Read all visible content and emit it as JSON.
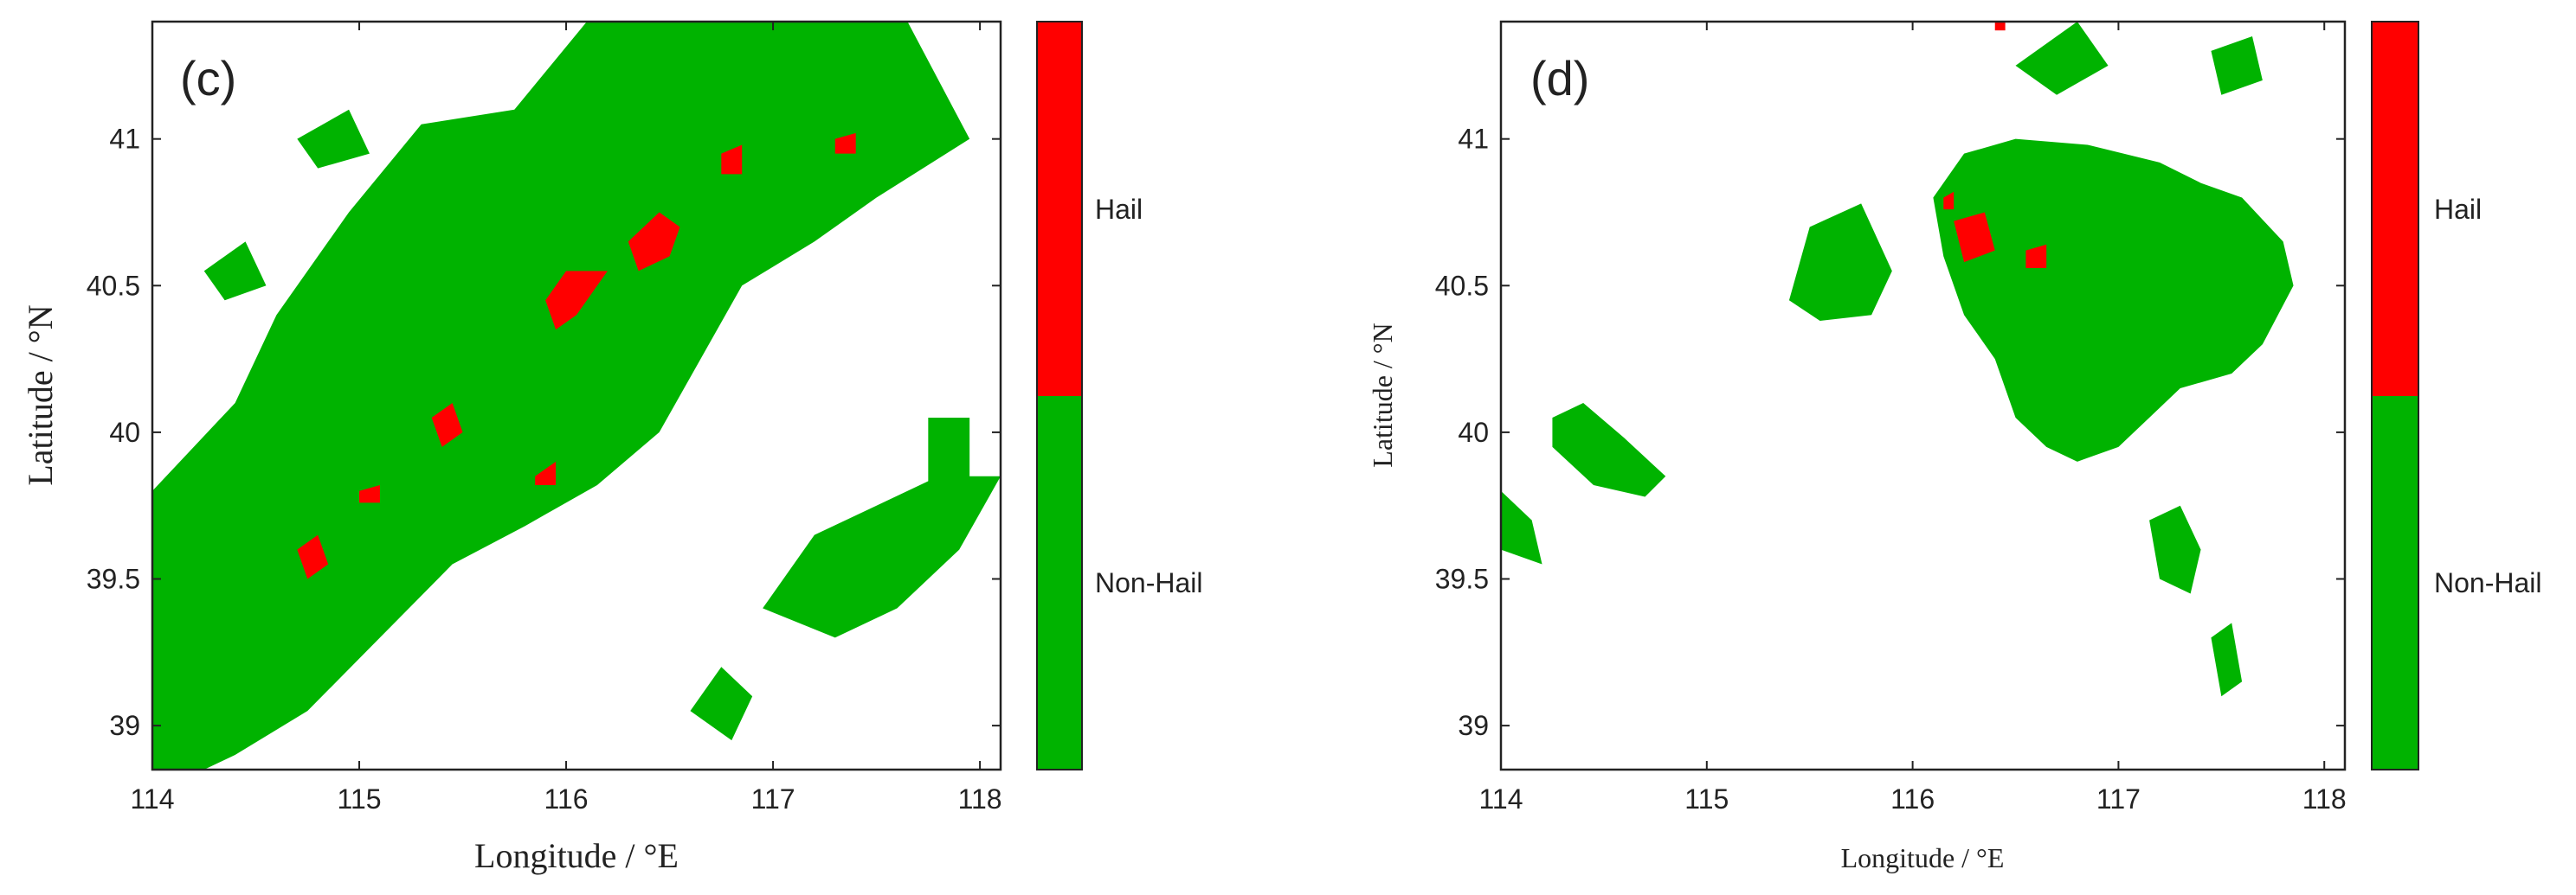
{
  "chart_data": [
    {
      "type": "heatmap",
      "panel_label": "(c)",
      "xlabel": "Longitude / °E",
      "ylabel": "Latitude / °N",
      "xlim": [
        114,
        118.1
      ],
      "ylim": [
        38.85,
        41.4
      ],
      "xticks": [
        114,
        115,
        116,
        117,
        118
      ],
      "yticks": [
        39,
        39.5,
        40,
        40.5,
        41
      ],
      "xtick_labels": [
        "114",
        "115",
        "116",
        "117",
        "118"
      ],
      "ytick_labels": [
        "39",
        "39.5",
        "40",
        "40.5",
        "41"
      ],
      "colorbar": {
        "categories": [
          "Hail",
          "Non-Hail"
        ],
        "colors": {
          "Hail": "#ff0000",
          "Non-Hail": "#00b300"
        }
      },
      "regions": {
        "non_hail": [
          [
            [
              114,
              38.85
            ],
            [
              114,
              39.8
            ],
            [
              114.4,
              40.1
            ],
            [
              114.6,
              40.4
            ],
            [
              114.95,
              40.75
            ],
            [
              115.3,
              41.05
            ],
            [
              115.75,
              41.1
            ],
            [
              116.1,
              41.4
            ],
            [
              117.65,
              41.4
            ],
            [
              117.95,
              41.0
            ],
            [
              117.5,
              40.8
            ],
            [
              117.2,
              40.65
            ],
            [
              116.85,
              40.5
            ],
            [
              116.65,
              40.25
            ],
            [
              116.45,
              40.0
            ],
            [
              116.15,
              39.82
            ],
            [
              115.8,
              39.68
            ],
            [
              115.45,
              39.55
            ],
            [
              115.1,
              39.3
            ],
            [
              114.75,
              39.05
            ],
            [
              114.4,
              38.9
            ],
            [
              114.25,
              38.85
            ]
          ],
          [
            [
              114.25,
              40.55
            ],
            [
              114.45,
              40.65
            ],
            [
              114.55,
              40.5
            ],
            [
              114.35,
              40.45
            ]
          ],
          [
            [
              114.7,
              41.0
            ],
            [
              114.95,
              41.1
            ],
            [
              115.05,
              40.95
            ],
            [
              114.8,
              40.9
            ]
          ],
          [
            [
              116.95,
              39.4
            ],
            [
              117.2,
              39.65
            ],
            [
              117.5,
              39.75
            ],
            [
              117.8,
              39.85
            ],
            [
              118.1,
              39.85
            ],
            [
              117.9,
              39.6
            ],
            [
              117.6,
              39.4
            ],
            [
              117.3,
              39.3
            ]
          ],
          [
            [
              116.6,
              39.05
            ],
            [
              116.75,
              39.2
            ],
            [
              116.9,
              39.1
            ],
            [
              116.8,
              38.95
            ]
          ],
          [
            [
              117.75,
              40.05
            ],
            [
              117.95,
              40.05
            ],
            [
              117.95,
              39.75
            ],
            [
              117.75,
              39.75
            ]
          ]
        ],
        "hail": [
          [
            [
              116.3,
              40.65
            ],
            [
              116.45,
              40.75
            ],
            [
              116.55,
              40.7
            ],
            [
              116.5,
              40.6
            ],
            [
              116.35,
              40.55
            ]
          ],
          [
            [
              115.9,
              40.45
            ],
            [
              116.0,
              40.55
            ],
            [
              116.2,
              40.55
            ],
            [
              116.05,
              40.4
            ],
            [
              115.95,
              40.35
            ]
          ],
          [
            [
              115.35,
              40.05
            ],
            [
              115.45,
              40.1
            ],
            [
              115.5,
              40.0
            ],
            [
              115.4,
              39.95
            ]
          ],
          [
            [
              114.7,
              39.6
            ],
            [
              114.8,
              39.65
            ],
            [
              114.85,
              39.55
            ],
            [
              114.75,
              39.5
            ]
          ],
          [
            [
              116.75,
              40.95
            ],
            [
              116.85,
              40.98
            ],
            [
              116.85,
              40.88
            ],
            [
              116.75,
              40.88
            ]
          ],
          [
            [
              117.3,
              41.0
            ],
            [
              117.4,
              41.02
            ],
            [
              117.4,
              40.95
            ],
            [
              117.3,
              40.95
            ]
          ],
          [
            [
              115.85,
              39.85
            ],
            [
              115.95,
              39.9
            ],
            [
              115.95,
              39.82
            ],
            [
              115.85,
              39.82
            ]
          ],
          [
            [
              115.0,
              39.8
            ],
            [
              115.1,
              39.82
            ],
            [
              115.1,
              39.76
            ],
            [
              115.0,
              39.76
            ]
          ]
        ]
      }
    },
    {
      "type": "heatmap",
      "panel_label": "(d)",
      "xlabel": "Longitude / °E",
      "ylabel": "Latitude / °N",
      "xlim": [
        114,
        118.1
      ],
      "ylim": [
        38.85,
        41.4
      ],
      "xticks": [
        114,
        115,
        116,
        117,
        118
      ],
      "yticks": [
        39,
        39.5,
        40,
        40.5,
        41
      ],
      "xtick_labels": [
        "114",
        "115",
        "116",
        "117",
        "118"
      ],
      "ytick_labels": [
        "39",
        "39.5",
        "40",
        "40.5",
        "41"
      ],
      "colorbar": {
        "categories": [
          "Hail",
          "Non-Hail"
        ],
        "colors": {
          "Hail": "#ff0000",
          "Non-Hail": "#00b300"
        }
      },
      "regions": {
        "non_hail": [
          [
            [
              116.25,
              40.95
            ],
            [
              116.5,
              41.0
            ],
            [
              116.85,
              40.98
            ],
            [
              117.2,
              40.92
            ],
            [
              117.4,
              40.85
            ],
            [
              117.6,
              40.8
            ],
            [
              117.8,
              40.65
            ],
            [
              117.85,
              40.5
            ],
            [
              117.7,
              40.3
            ],
            [
              117.55,
              40.2
            ],
            [
              117.3,
              40.15
            ],
            [
              117.15,
              40.05
            ],
            [
              117.0,
              39.95
            ],
            [
              116.8,
              39.9
            ],
            [
              116.65,
              39.95
            ],
            [
              116.5,
              40.05
            ],
            [
              116.4,
              40.25
            ],
            [
              116.25,
              40.4
            ],
            [
              116.15,
              40.6
            ],
            [
              116.1,
              40.8
            ]
          ],
          [
            [
              115.4,
              40.45
            ],
            [
              115.5,
              40.7
            ],
            [
              115.75,
              40.78
            ],
            [
              115.9,
              40.55
            ],
            [
              115.8,
              40.4
            ],
            [
              115.55,
              40.38
            ]
          ],
          [
            [
              114.25,
              40.05
            ],
            [
              114.4,
              40.1
            ],
            [
              114.6,
              39.98
            ],
            [
              114.8,
              39.85
            ],
            [
              114.7,
              39.78
            ],
            [
              114.45,
              39.82
            ],
            [
              114.25,
              39.95
            ]
          ],
          [
            [
              117.15,
              39.7
            ],
            [
              117.3,
              39.75
            ],
            [
              117.4,
              39.6
            ],
            [
              117.35,
              39.45
            ],
            [
              117.2,
              39.5
            ]
          ],
          [
            [
              117.45,
              39.3
            ],
            [
              117.55,
              39.35
            ],
            [
              117.6,
              39.15
            ],
            [
              117.5,
              39.1
            ]
          ],
          [
            [
              114,
              39.8
            ],
            [
              114.15,
              39.7
            ],
            [
              114.2,
              39.55
            ],
            [
              114,
              39.6
            ]
          ],
          [
            [
              116.5,
              41.25
            ],
            [
              116.8,
              41.4
            ],
            [
              116.95,
              41.25
            ],
            [
              116.7,
              41.15
            ]
          ],
          [
            [
              117.45,
              41.3
            ],
            [
              117.65,
              41.35
            ],
            [
              117.7,
              41.2
            ],
            [
              117.5,
              41.15
            ]
          ]
        ],
        "hail": [
          [
            [
              116.2,
              40.72
            ],
            [
              116.35,
              40.75
            ],
            [
              116.4,
              40.62
            ],
            [
              116.25,
              40.58
            ]
          ],
          [
            [
              116.55,
              40.62
            ],
            [
              116.65,
              40.64
            ],
            [
              116.65,
              40.56
            ],
            [
              116.55,
              40.56
            ]
          ],
          [
            [
              116.15,
              40.8
            ],
            [
              116.2,
              40.82
            ],
            [
              116.2,
              40.76
            ],
            [
              116.15,
              40.76
            ]
          ],
          [
            [
              116.4,
              41.42
            ],
            [
              116.45,
              41.42
            ],
            [
              116.45,
              41.37
            ],
            [
              116.4,
              41.37
            ]
          ]
        ]
      }
    }
  ]
}
